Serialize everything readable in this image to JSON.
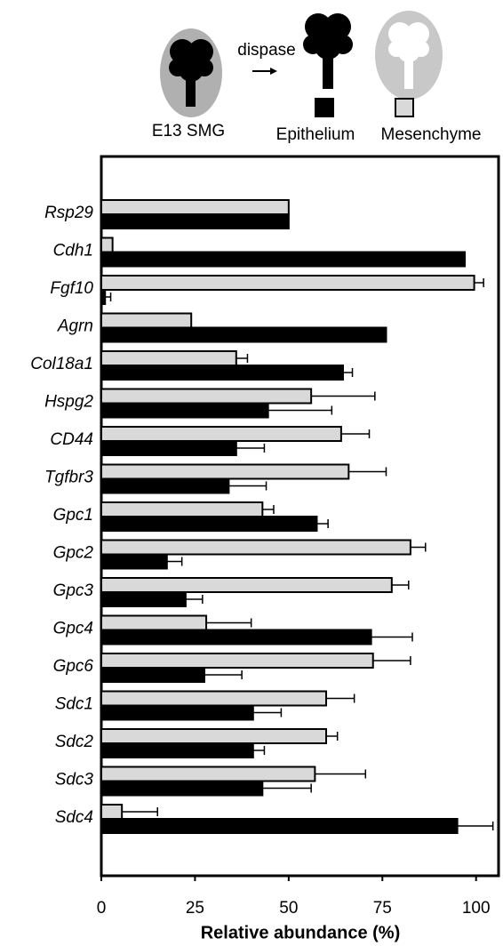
{
  "chart_data": {
    "type": "hbar",
    "annotations": [
      "dispase",
      "E13 SMG"
    ],
    "categories": [
      "Rsp29",
      "Cdh1",
      "Fgf10",
      "Agrn",
      "Col18a1",
      "Hspg2",
      "CD44",
      "Tgfbr3",
      "Gpc1",
      "Gpc2",
      "Gpc3",
      "Gpc4",
      "Gpc6",
      "Sdc1",
      "Sdc2",
      "Sdc3",
      "Sdc4"
    ],
    "series": [
      {
        "name": "Epithelium",
        "color": "#000000",
        "values": [
          50,
          97,
          1,
          76,
          64.5,
          44.5,
          36,
          34,
          57.5,
          17.5,
          22.5,
          72,
          27.5,
          40.5,
          40.5,
          43,
          95
        ],
        "errors": [
          null,
          null,
          1.5,
          null,
          2.5,
          17,
          7.5,
          10,
          3,
          4,
          4.5,
          11,
          10,
          7.5,
          3,
          13,
          9.5
        ]
      },
      {
        "name": "Mesenchyme",
        "color": "#d9d9d9",
        "values": [
          50,
          3,
          99.5,
          24,
          36,
          56,
          64,
          66,
          43,
          82.5,
          77.5,
          28,
          72.5,
          60,
          60,
          57,
          5.5
        ],
        "errors": [
          null,
          null,
          2.5,
          null,
          3,
          17,
          7.5,
          10,
          3,
          4,
          4.5,
          12,
          10,
          7.5,
          3,
          13.5,
          9.5
        ]
      }
    ],
    "xlabel": "Relative abundance (%)",
    "xlim": [
      0,
      106
    ],
    "xticks": [
      0,
      25,
      50,
      75,
      100
    ],
    "grid": false
  }
}
